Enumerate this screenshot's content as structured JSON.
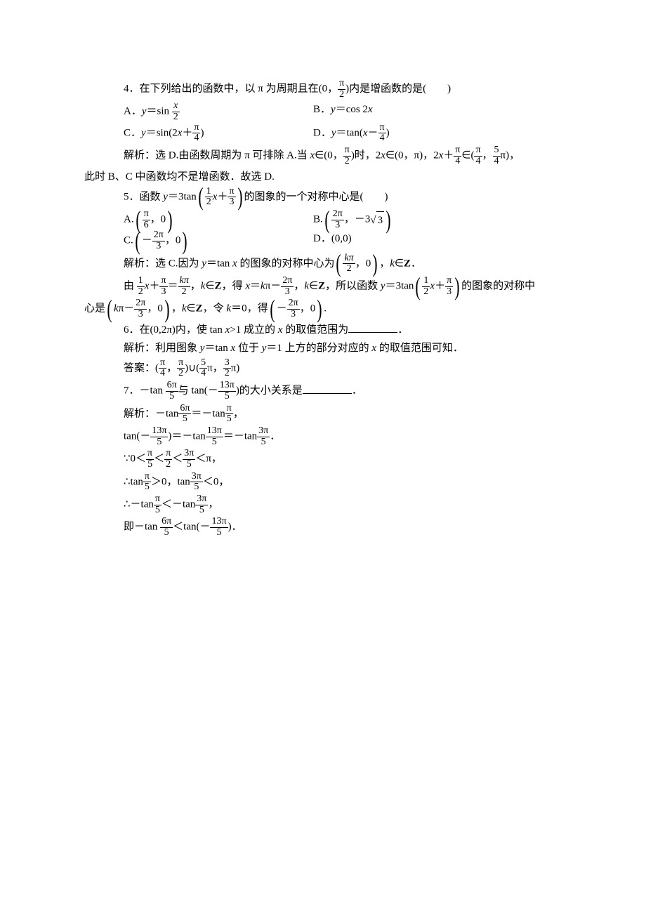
{
  "p4": {
    "stem_a": "4．在下列给出的函数中，以 π 为周期且在(0，",
    "stem_frac_num": "π",
    "stem_frac_den": "2",
    "stem_b": ")内是增函数的是(　　)",
    "A_lead": "A．",
    "A_l1": "y",
    "A_l2": "＝sin ",
    "A_frac_num": "x",
    "A_frac_den": "2",
    "B_lead": "B．",
    "B_l1": "y",
    "B_l2": "＝cos 2",
    "B_l3": "x",
    "C_lead": "C．",
    "C_l1": "y",
    "C_l2": "＝sin(2",
    "C_l3": "x",
    "C_l4": "＋",
    "C_frac_num": "π",
    "C_frac_den": "4",
    "C_l5": ")",
    "D_lead": "D．",
    "D_l1": "y",
    "D_l2": "＝tan(",
    "D_l3": "x",
    "D_l4": "－",
    "D_frac_num": "π",
    "D_frac_den": "4",
    "D_l5": ")",
    "ans_a": "解析：选 D.由函数周期为 π 可排除 A.当 ",
    "ans_x": "x",
    "ans_b": "∈(0，",
    "ans_f1n": "π",
    "ans_f1d": "2",
    "ans_c": ")时，2",
    "ans_x2": "x",
    "ans_d": "∈(0，π)，2",
    "ans_x3": "x",
    "ans_e": "＋",
    "ans_f2n": "π",
    "ans_f2d": "4",
    "ans_f": "∈(",
    "ans_f3n": "π",
    "ans_f3d": "4",
    "ans_g": "，",
    "ans_f4n": "5",
    "ans_f4d": "4",
    "ans_h": "π)，",
    "ans_line2": "此时 B、C 中函数均不是增函数．故选 D."
  },
  "p5": {
    "stem_a": "5．函数 ",
    "stem_y": "y",
    "stem_b": "＝3tan",
    "arg_a": "",
    "arg_f1n": "1",
    "arg_f1d": "2",
    "arg_x": "x",
    "arg_plus": "＋",
    "arg_f2n": "π",
    "arg_f2d": "3",
    "stem_c": "的图象的一个对称中心是(　　)",
    "A_lead": "A.",
    "A_f_n": "π",
    "A_f_d": "6",
    "A_tail": "，0",
    "B_lead": "B.",
    "B_f_n": "2π",
    "B_f_d": "3",
    "B_mid": "，－3",
    "B_rad": "3",
    "C_lead": "C.",
    "C_neg": "－",
    "C_f_n": "2π",
    "C_f_d": "3",
    "C_tail": "，0",
    "D_lead": "D．",
    "D_body": "(0,0)",
    "ans_a": "解析：选 C.因为 ",
    "ans_y": "y",
    "ans_b": "＝tan ",
    "ans_x": "x",
    "ans_c": " 的图象的对称中心为",
    "ans_f1n": "kπ",
    "ans_f1d": "2",
    "ans_d": "，0",
    "ans_e": "，",
    "ans_k": "k",
    "ans_f": "∈",
    "ans_Z": "Z",
    "ans_g": "．",
    "l2_a": "由 ",
    "l2_f1n": "1",
    "l2_f1d": "2",
    "l2_x": "x",
    "l2_b": "＋",
    "l2_f2n": "π",
    "l2_f2d": "3",
    "l2_c": "＝",
    "l2_f3n": "kπ",
    "l2_f3d": "2",
    "l2_d": "，",
    "l2_k": "k",
    "l2_e": "∈",
    "l2_Z": "Z",
    "l2_f": "，得 ",
    "l2_x2": "x",
    "l2_g": "＝",
    "l2_k2": "k",
    "l2_h": "π－",
    "l2_f4n": "2π",
    "l2_f4d": "3",
    "l2_i": "，",
    "l2_k3": "k",
    "l2_j": "∈",
    "l2_Z2": "Z",
    "l2_k4": "，所以函数 ",
    "l2_y": "y",
    "l2_l": "＝3tan",
    "l2_f5n": "1",
    "l2_f5d": "2",
    "l2_x3": "x",
    "l2_m": "＋",
    "l2_f6n": "π",
    "l2_f6d": "3",
    "l2_n": "的图象的对称中",
    "l3_a": "心是",
    "l3_k": "k",
    "l3_b": "π－",
    "l3_f1n": "2π",
    "l3_f1d": "3",
    "l3_c": "，0",
    "l3_d": "，",
    "l3_k2": "k",
    "l3_e": "∈",
    "l3_Z": "Z",
    "l3_f": "，令 ",
    "l3_k3": "k",
    "l3_g": "＝0，得",
    "l3_neg": "－",
    "l3_f2n": "2π",
    "l3_f2d": "3",
    "l3_h": "，0",
    "l3_i": "."
  },
  "p6": {
    "stem_a": "6．在(0,2π)内，使 tan ",
    "stem_x": "x",
    "stem_b": ">1 成立的 ",
    "stem_x2": "x",
    "stem_c": " 的取值范围为",
    "ans": "解析：利用图象 ",
    "ans_y": "y",
    "ans_b": "＝tan ",
    "ans_x": "x",
    "ans_c": " 位于 ",
    "ans_y2": "y",
    "ans_d": "＝1 上方的部分对应的 ",
    "ans_x2": "x",
    "ans_e": " 的取值范围可知．",
    "answer_lead": "答案：(",
    "a_f1n": "π",
    "a_f1d": "4",
    "a_m1": "，",
    "a_f2n": "π",
    "a_f2d": "2",
    "a_m2": ")∪(",
    "a_f3n": "5",
    "a_f3d": "4",
    "a_m3": "π，",
    "a_f4n": "3",
    "a_f4d": "2",
    "a_m4": "π)"
  },
  "p7": {
    "stem_a": "7．－tan ",
    "f1n": "6π",
    "f1d": "5",
    "stem_b": "与 tan(－",
    "f2n": "13π",
    "f2d": "5",
    "stem_c": ")的大小关系是",
    "l1_a": "解析：－tan",
    "l1_f1n": "6π",
    "l1_f1d": "5",
    "l1_b": "＝－tan",
    "l1_f2n": "π",
    "l1_f2d": "5",
    "l1_c": "，",
    "l2_a": "tan(－",
    "l2_f1n": "13π",
    "l2_f1d": "5",
    "l2_b": ")＝－tan",
    "l2_f2n": "13π",
    "l2_f2d": "5",
    "l2_c": "＝－tan",
    "l2_f3n": "3π",
    "l2_f3d": "5",
    "l2_d": "．",
    "l3_a": "∵0＜",
    "l3_f1n": "π",
    "l3_f1d": "5",
    "l3_b": "＜",
    "l3_f2n": "π",
    "l3_f2d": "2",
    "l3_c": "＜",
    "l3_f3n": "3π",
    "l3_f3d": "5",
    "l3_d": "＜π，",
    "l4_a": "∴tan",
    "l4_f1n": "π",
    "l4_f1d": "5",
    "l4_b": "＞0，tan",
    "l4_f2n": "3π",
    "l4_f2d": "5",
    "l4_c": "＜0，",
    "l5_a": "∴－tan",
    "l5_f1n": "π",
    "l5_f1d": "5",
    "l5_b": "＜－tan",
    "l5_f2n": "3π",
    "l5_f2d": "5",
    "l5_c": "，",
    "l6_a": "即－tan ",
    "l6_f1n": "6π",
    "l6_f1d": "5",
    "l6_b": "＜tan(－",
    "l6_f2n": "13π",
    "l6_f2d": "5",
    "l6_c": ")．"
  }
}
